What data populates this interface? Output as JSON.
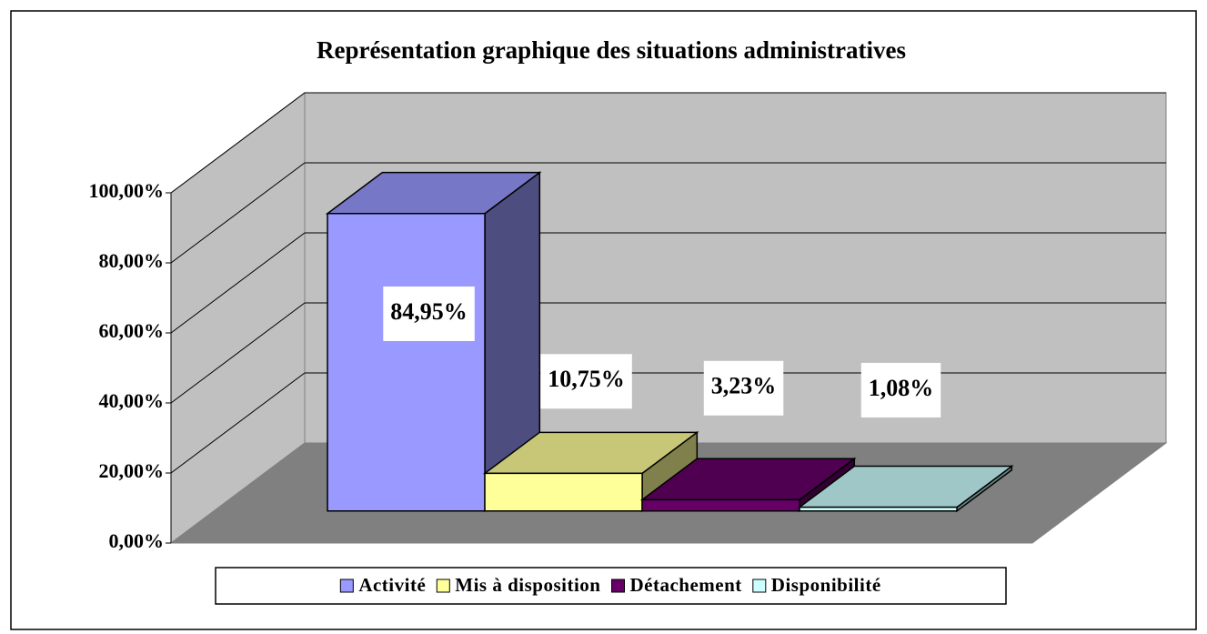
{
  "chart_data": {
    "type": "bar3d",
    "title": "Représentation graphique des situations administratives",
    "series": [
      {
        "name": "Activité",
        "color": "#9999ff",
        "values": [
          84.95
        ],
        "value_labels": [
          "84,95%"
        ]
      },
      {
        "name": "Mis à disposition",
        "color": "#ffff99",
        "values": [
          10.75
        ],
        "value_labels": [
          "10,75%"
        ]
      },
      {
        "name": "Détachement",
        "color": "#660066",
        "values": [
          3.23
        ],
        "value_labels": [
          "3,23%"
        ]
      },
      {
        "name": "Disponibilité",
        "color": "#ccffff",
        "values": [
          1.08
        ],
        "value_labels": [
          "1,08%"
        ]
      }
    ],
    "ylim": [
      0,
      100
    ],
    "yticks": [
      {
        "value": 0,
        "label": "0,00%"
      },
      {
        "value": 20,
        "label": "20,00%"
      },
      {
        "value": 40,
        "label": "40,00%"
      },
      {
        "value": 60,
        "label": "60,00%"
      },
      {
        "value": 80,
        "label": "80,00%"
      },
      {
        "value": 100,
        "label": "100,00%"
      }
    ],
    "grid": true,
    "legend": "bottom"
  }
}
